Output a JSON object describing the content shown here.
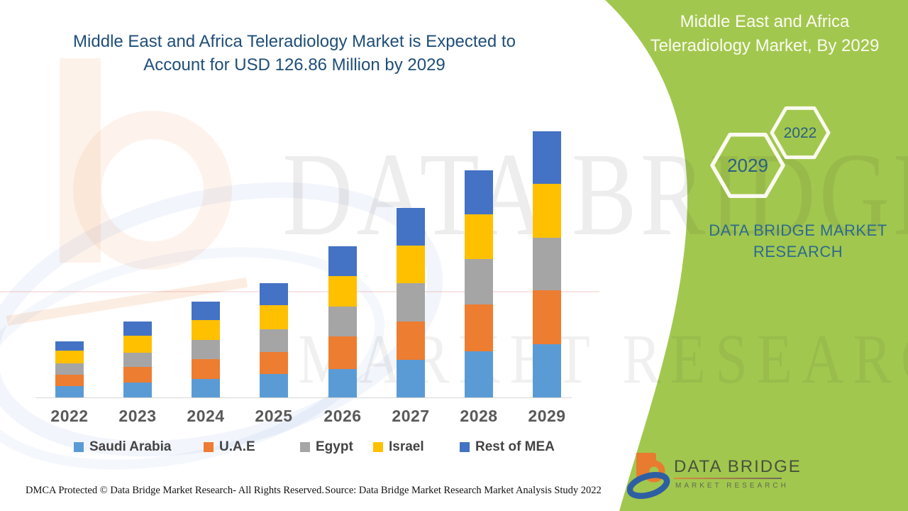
{
  "header": {
    "chart_title_line1": "Middle East and Africa Teleradiology Market is Expected to",
    "chart_title_line2": "Account for USD 126.86 Million by 2029"
  },
  "side_panel": {
    "title_line1": "Middle East and Africa",
    "title_line2": "Teleradiology Market, By 2029",
    "hexagon_large_label": "2029",
    "hexagon_small_label": "2022",
    "brand_line1": "DATA BRIDGE MARKET",
    "brand_line2": "RESEARCH",
    "logo_name": "DATA BRIDGE",
    "logo_sub": "MARKET RESEARCH"
  },
  "watermark": {
    "line1": "DATA BRIDGE",
    "line2": "MARKET RESEARCH"
  },
  "footer": {
    "left": "DMCA Protected © Data Bridge Market Research- All Rights Reserved.",
    "right": "Source: Data Bridge Market Research Market Analysis Study 2022"
  },
  "colors": {
    "panel_green": "#A2C74E",
    "title_blue": "#1F4E79",
    "brand_teal": "#2C6B8F",
    "hexagon_number": "#2B5F80",
    "axis_label_gray": "#595959",
    "saudi_arabia": "#5B9BD5",
    "uae": "#ED7D31",
    "egypt": "#A5A5A5",
    "israel": "#FFC000",
    "rest_of_mea": "#4472C4"
  },
  "chart_data": {
    "type": "bar",
    "stacked": true,
    "unit": "USD Million",
    "title": "Middle East and Africa Teleradiology Market is Expected to Account for USD 126.86 Million by 2029",
    "categories": [
      "2022",
      "2023",
      "2024",
      "2025",
      "2026",
      "2027",
      "2028",
      "2029"
    ],
    "series": [
      {
        "name": "Saudi Arabia",
        "color": "#5B9BD5",
        "values": [
          5.4,
          7.1,
          8.8,
          11.2,
          13.5,
          17.9,
          22.0,
          25.4
        ]
      },
      {
        "name": "U.A.E",
        "color": "#ED7D31",
        "values": [
          5.4,
          7.4,
          9.5,
          10.5,
          15.6,
          18.3,
          22.3,
          25.7
        ]
      },
      {
        "name": "Egypt",
        "color": "#A5A5A5",
        "values": [
          5.4,
          6.8,
          9.1,
          10.8,
          14.2,
          18.3,
          21.6,
          25.0
        ]
      },
      {
        "name": "Israel",
        "color": "#FFC000",
        "values": [
          6.1,
          8.1,
          9.5,
          11.5,
          14.5,
          17.9,
          21.3,
          25.7
        ]
      },
      {
        "name": "Rest of MEA",
        "color": "#4472C4",
        "values": [
          4.4,
          6.8,
          8.8,
          10.5,
          14.2,
          17.9,
          21.0,
          25.06
        ]
      }
    ],
    "estimated_totals": [
      26.7,
      36.2,
      45.7,
      54.5,
      72.0,
      90.3,
      108.2,
      126.86
    ],
    "total_2029": 126.86,
    "ylim": [
      0,
      130
    ],
    "xlabel": "",
    "ylabel": "",
    "grid": false,
    "legend_position": "bottom"
  }
}
